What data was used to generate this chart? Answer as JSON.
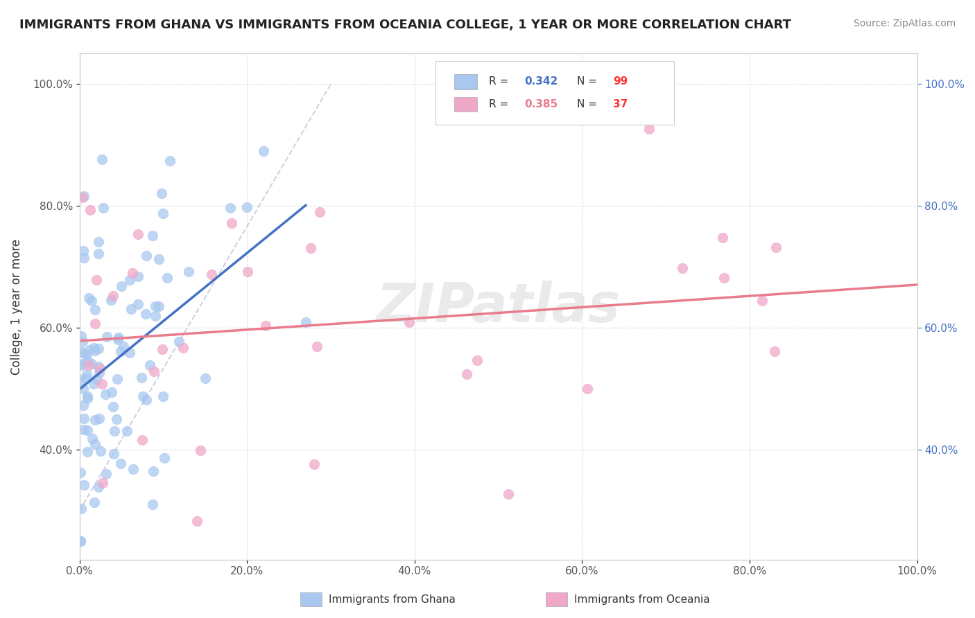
{
  "title": "IMMIGRANTS FROM GHANA VS IMMIGRANTS FROM OCEANIA COLLEGE, 1 YEAR OR MORE CORRELATION CHART",
  "source": "Source: ZipAtlas.com",
  "ylabel": "College, 1 year or more",
  "legend_entries": [
    {
      "label": "Immigrants from Ghana",
      "color": "#a8c8f0",
      "R": 0.342,
      "N": 99
    },
    {
      "label": "Immigrants from Oceania",
      "color": "#f0a8c8",
      "R": 0.385,
      "N": 37
    }
  ],
  "ghana_line_color": "#4472c4",
  "oceania_line_color": "#e87c8c",
  "ghana_dot_color": "#a8c8f0",
  "oceania_dot_color": "#f0a8c8",
  "watermark": "ZIPatlas",
  "background_color": "#ffffff",
  "grid_color": "#dddddd",
  "R_ghana": 0.342,
  "N_ghana": 99,
  "R_oceania": 0.385,
  "N_oceania": 37,
  "xticks": [
    0.0,
    0.2,
    0.4,
    0.6,
    0.8,
    1.0
  ],
  "yticks": [
    0.4,
    0.6,
    0.8,
    1.0
  ],
  "xlim": [
    0.0,
    1.0
  ],
  "ylim": [
    0.22,
    1.05
  ]
}
